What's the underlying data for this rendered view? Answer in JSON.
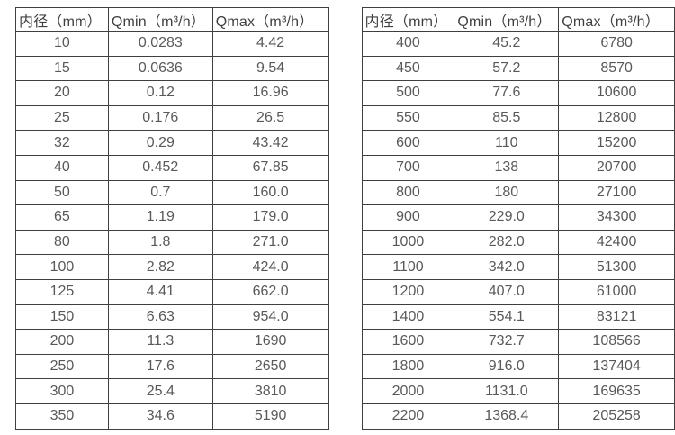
{
  "colors": {
    "border": "#3f3f3f",
    "header_text": "#404040",
    "cell_text": "#595959",
    "background": "#ffffff"
  },
  "tables": [
    {
      "name": "small-diameter-flow-table",
      "headers": [
        "内径（mm）",
        "Qmin（m³/h）",
        "Qmax（m³/h）"
      ],
      "rows": [
        [
          "10",
          "0.0283",
          "4.42"
        ],
        [
          "15",
          "0.0636",
          "9.54"
        ],
        [
          "20",
          "0.12",
          "16.96"
        ],
        [
          "25",
          "0.176",
          "26.5"
        ],
        [
          "32",
          "0.29",
          "43.42"
        ],
        [
          "40",
          "0.452",
          "67.85"
        ],
        [
          "50",
          "0.7",
          "160.0"
        ],
        [
          "65",
          "1.19",
          "179.0"
        ],
        [
          "80",
          "1.8",
          "271.0"
        ],
        [
          "100",
          "2.82",
          "424.0"
        ],
        [
          "125",
          "4.41",
          "662.0"
        ],
        [
          "150",
          "6.63",
          "954.0"
        ],
        [
          "200",
          "11.3",
          "1690"
        ],
        [
          "250",
          "17.6",
          "2650"
        ],
        [
          "300",
          "25.4",
          "3810"
        ],
        [
          "350",
          "34.6",
          "5190"
        ]
      ]
    },
    {
      "name": "large-diameter-flow-table",
      "headers": [
        "内径（mm）",
        "Qmin（m³/h）",
        "Qmax（m³/h）"
      ],
      "rows": [
        [
          "400",
          "45.2",
          "6780"
        ],
        [
          "450",
          "57.2",
          "8570"
        ],
        [
          "500",
          "77.6",
          "10600"
        ],
        [
          "550",
          "85.5",
          "12800"
        ],
        [
          "600",
          "110",
          "15200"
        ],
        [
          "700",
          "138",
          "20700"
        ],
        [
          "800",
          "180",
          "27100"
        ],
        [
          "900",
          "229.0",
          "34300"
        ],
        [
          "1000",
          "282.0",
          "42400"
        ],
        [
          "1100",
          "342.0",
          "51300"
        ],
        [
          "1200",
          "407.0",
          "61000"
        ],
        [
          "1400",
          "554.1",
          "83121"
        ],
        [
          "1600",
          "732.7",
          "108566"
        ],
        [
          "1800",
          "916.0",
          "137404"
        ],
        [
          "2000",
          "1131.0",
          "169635"
        ],
        [
          "2200",
          "1368.4",
          "205258"
        ]
      ]
    }
  ]
}
